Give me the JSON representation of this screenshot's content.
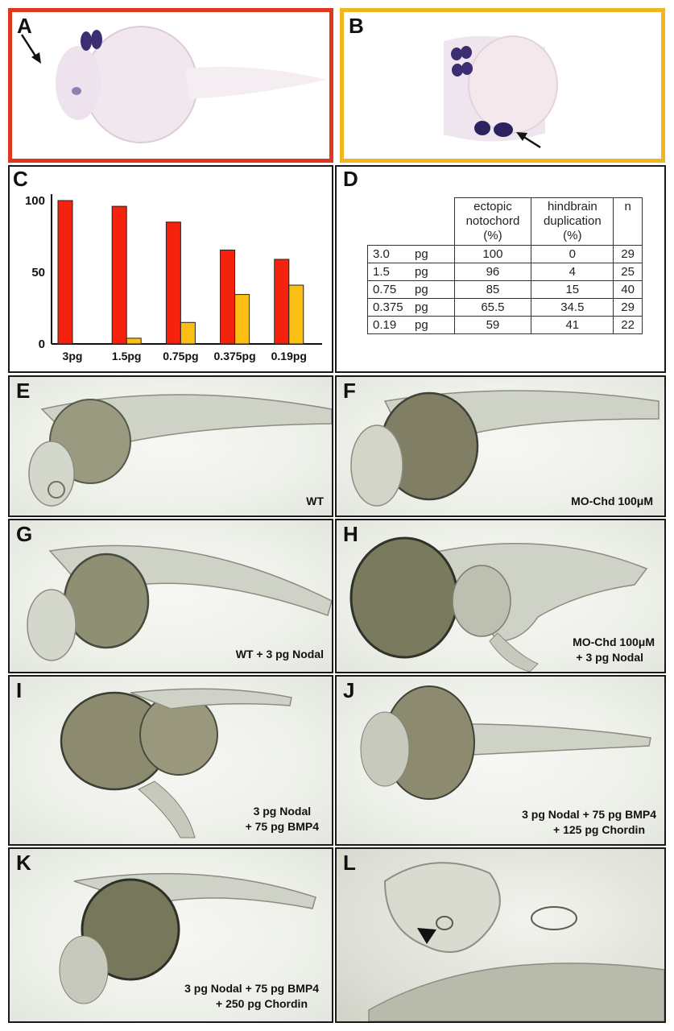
{
  "panels": {
    "A": {
      "letter": "A",
      "border_color": "#e0361e"
    },
    "B": {
      "letter": "B",
      "border_color": "#f2b420"
    },
    "C": {
      "letter": "C"
    },
    "D": {
      "letter": "D"
    },
    "E": {
      "letter": "E",
      "caption": "WT"
    },
    "F": {
      "letter": "F",
      "caption": "MO-Chd 100μM"
    },
    "G": {
      "letter": "G",
      "caption": "WT + 3 pg Nodal"
    },
    "H": {
      "letter": "H",
      "caption_line1": "MO-Chd 100μM",
      "caption_line2": "+ 3 pg Nodal"
    },
    "I": {
      "letter": "I",
      "caption_line1": "3 pg Nodal",
      "caption_line2": "+ 75 pg BMP4"
    },
    "J": {
      "letter": "J",
      "caption_line1": "3 pg Nodal + 75 pg BMP4",
      "caption_line2": "+ 125 pg Chordin"
    },
    "K": {
      "letter": "K",
      "caption_line1": "3 pg Nodal + 75 pg BMP4",
      "caption_line2": "+ 250 pg Chordin"
    },
    "L": {
      "letter": "L"
    }
  },
  "chart_data": {
    "type": "bar",
    "categories": [
      "3pg",
      "1.5pg",
      "0.75pg",
      "0.375pg",
      "0.19pg"
    ],
    "series": [
      {
        "color": "#f5230d",
        "values": [
          100,
          96,
          85,
          65.5,
          59
        ]
      },
      {
        "color": "#fbbf13",
        "values": [
          0,
          4,
          15,
          34.5,
          41
        ]
      }
    ],
    "yticks": [
      "100",
      "50",
      "0"
    ],
    "ylim": [
      0,
      100
    ]
  },
  "table": {
    "headers": {
      "col1_line1": "ectopic",
      "col1_line2": "notochord",
      "col1_line3": "(%)",
      "col2_line1": "hindbrain",
      "col2_line2": "duplication",
      "col2_line3": "(%)",
      "col3": "n"
    },
    "rows": [
      {
        "dose": "3.0",
        "unit": "pg",
        "ectopic": "100",
        "dup": "0",
        "n": "29"
      },
      {
        "dose": "1.5",
        "unit": "pg",
        "ectopic": "96",
        "dup": "4",
        "n": "25"
      },
      {
        "dose": "0.75",
        "unit": "pg",
        "ectopic": "85",
        "dup": "15",
        "n": "40"
      },
      {
        "dose": "0.375",
        "unit": "pg",
        "ectopic": "65.5",
        "dup": "34.5",
        "n": "29"
      },
      {
        "dose": "0.19",
        "unit": "pg",
        "ectopic": "59",
        "dup": "41",
        "n": "22"
      }
    ]
  }
}
